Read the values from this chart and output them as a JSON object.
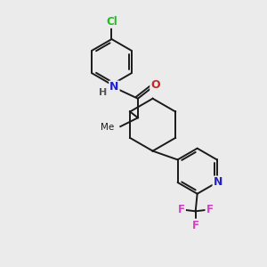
{
  "bg_color": "#ebebeb",
  "bond_color": "#1a1a1a",
  "atom_colors": {
    "Cl": "#22bb22",
    "N": "#2222cc",
    "O": "#cc2222",
    "F": "#cc44bb",
    "H": "#555555",
    "C": "#1a1a1a"
  },
  "lw": 1.4
}
